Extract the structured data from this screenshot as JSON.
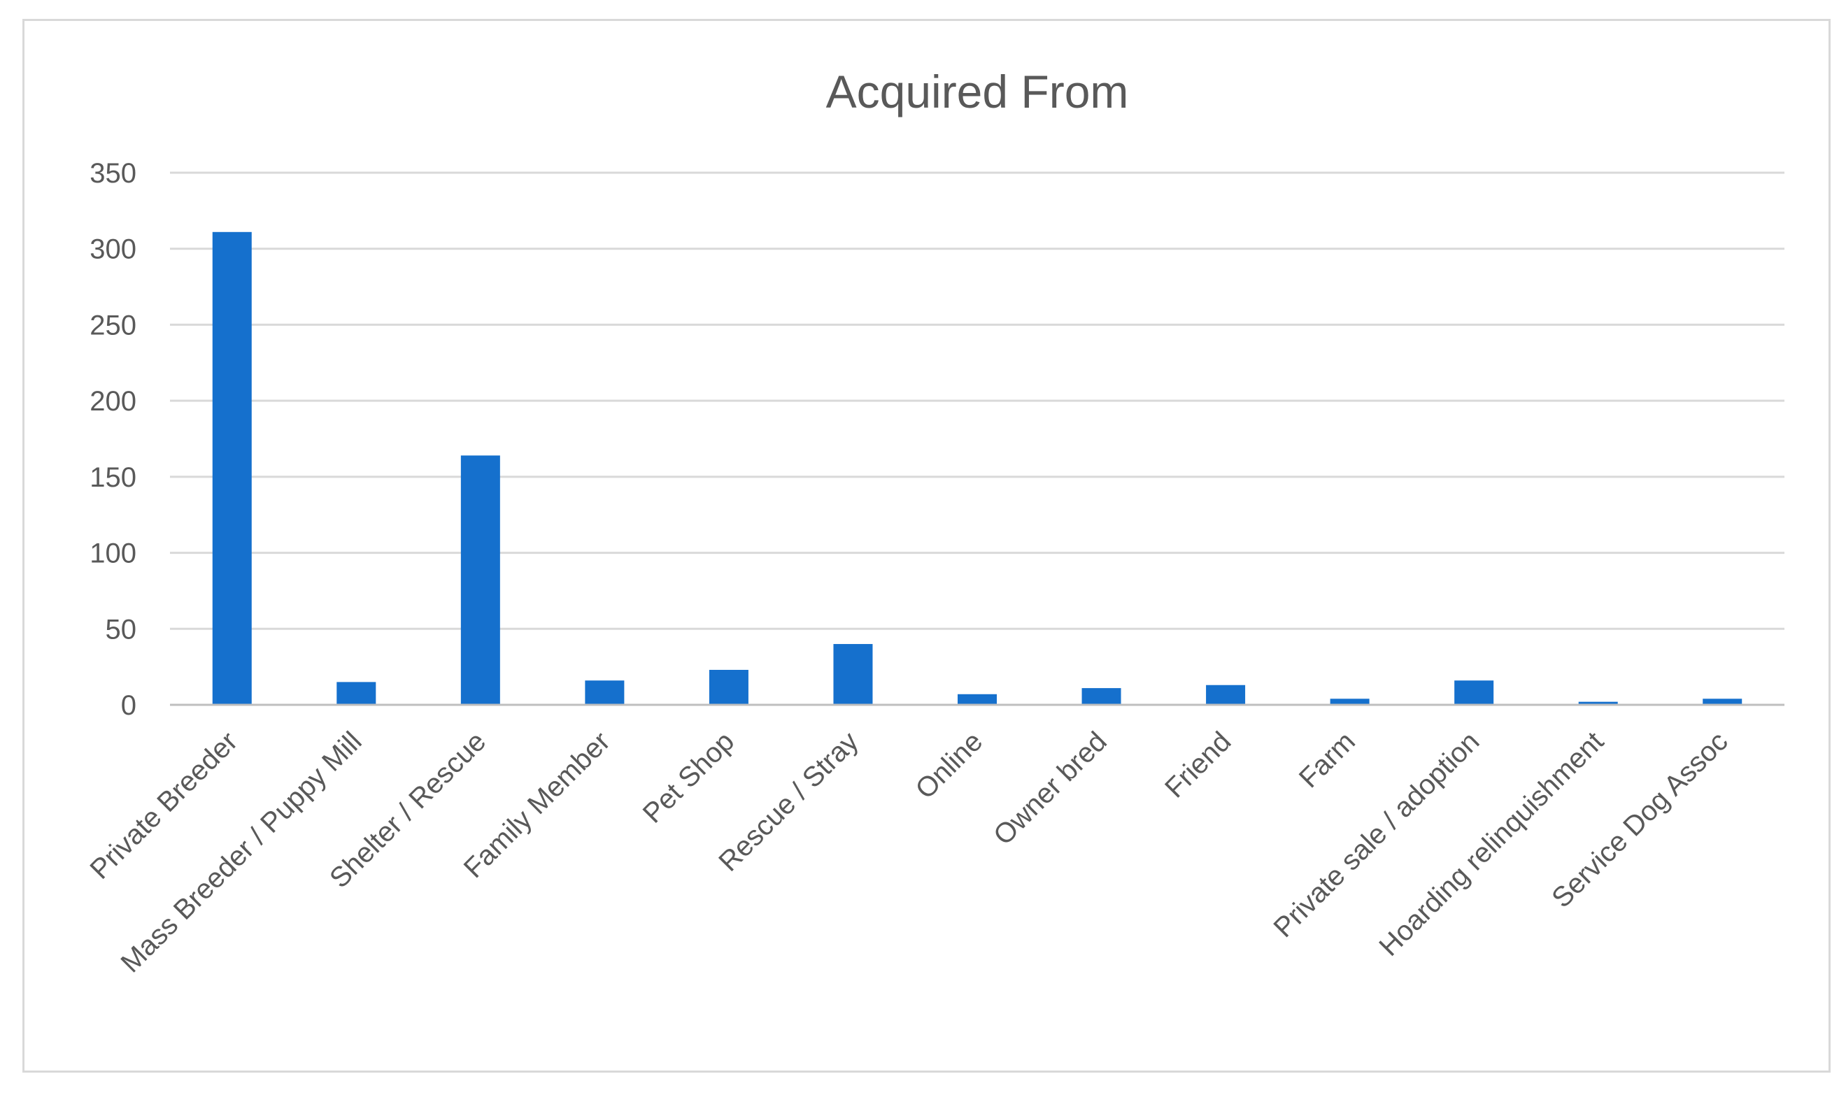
{
  "chart_data": {
    "type": "bar",
    "title": "Acquired From",
    "xlabel": "",
    "ylabel": "",
    "categories": [
      "Private Breeder",
      "Mass Breeder / Puppy Mill",
      "Shelter / Rescue",
      "Family Member",
      "Pet Shop",
      "Rescue / Stray",
      "Online",
      "Owner bred",
      "Friend",
      "Farm",
      "Private sale / adoption",
      "Hoarding relinquishment",
      "Service Dog Assoc"
    ],
    "values": [
      311,
      15,
      164,
      16,
      23,
      40,
      7,
      11,
      13,
      4,
      16,
      2,
      4
    ],
    "ylim": [
      0,
      350
    ],
    "yticks": [
      0,
      50,
      100,
      150,
      200,
      250,
      300,
      350
    ],
    "grid": true,
    "legend": "none",
    "colors": {
      "bar": "#1570cd",
      "grid": "#d9d9d9",
      "text": "#595959"
    }
  }
}
